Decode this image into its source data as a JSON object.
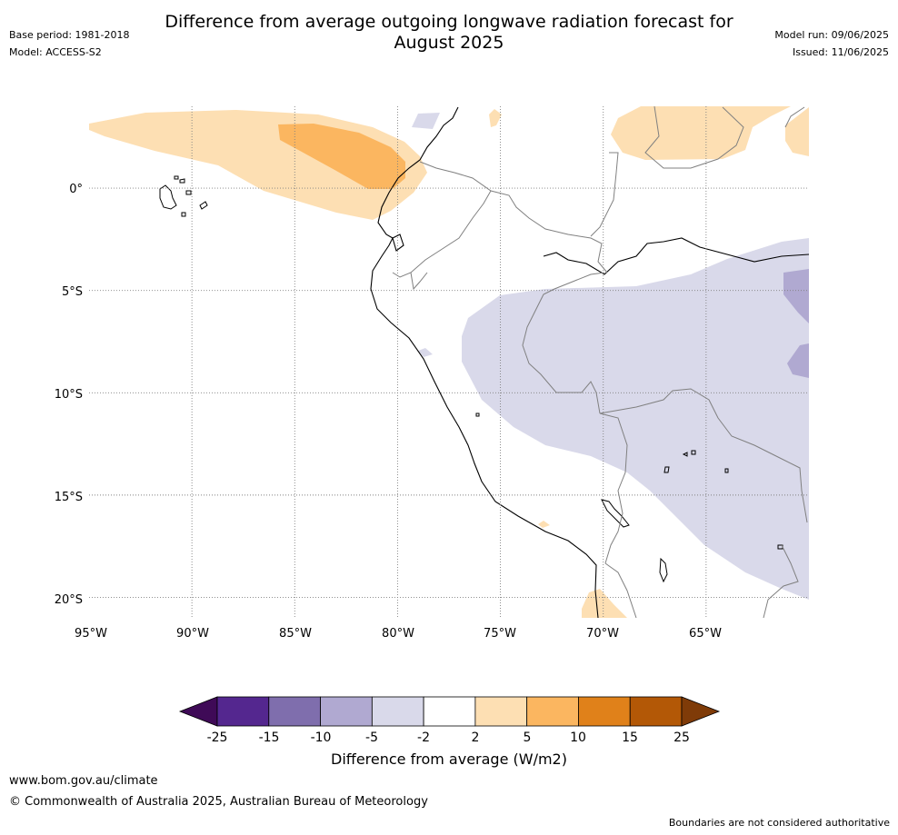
{
  "header": {
    "title_line1": "Difference from average outgoing longwave radiation forecast for",
    "title_line2": "August 2025",
    "base_period": "Base period: 1981-2018",
    "model": "Model: ACCESS-S2",
    "model_run": "Model run: 09/06/2025",
    "issued": "Issued: 11/06/2025"
  },
  "map": {
    "lon_labels": [
      "95°W",
      "90°W",
      "85°W",
      "80°W",
      "75°W",
      "70°W",
      "65°W"
    ],
    "lat_labels": [
      "0°",
      "5°S",
      "10°S",
      "15°S",
      "20°S"
    ],
    "extent": {
      "lon_min": -95,
      "lon_max": -60,
      "lat_min": -21,
      "lat_max": 4
    }
  },
  "colorbar": {
    "ticks": [
      "-25",
      "-15",
      "-10",
      "-5",
      "-2",
      "2",
      "5",
      "10",
      "15",
      "25"
    ],
    "colors": [
      "#3f0a57",
      "#54278f",
      "#7f6ead",
      "#b0a9d1",
      "#d9d9ea",
      "#ffffff",
      "#fddfb3",
      "#fbb660",
      "#e0811a",
      "#b35806",
      "#7f3b08"
    ],
    "label": "Difference from average (W/m2)"
  },
  "footer": {
    "url": "www.bom.gov.au/climate",
    "copyright": "© Commonwealth of Australia 2025, Australian Bureau of Meteorology",
    "disclaimer": "Boundaries are not considered authoritative"
  }
}
